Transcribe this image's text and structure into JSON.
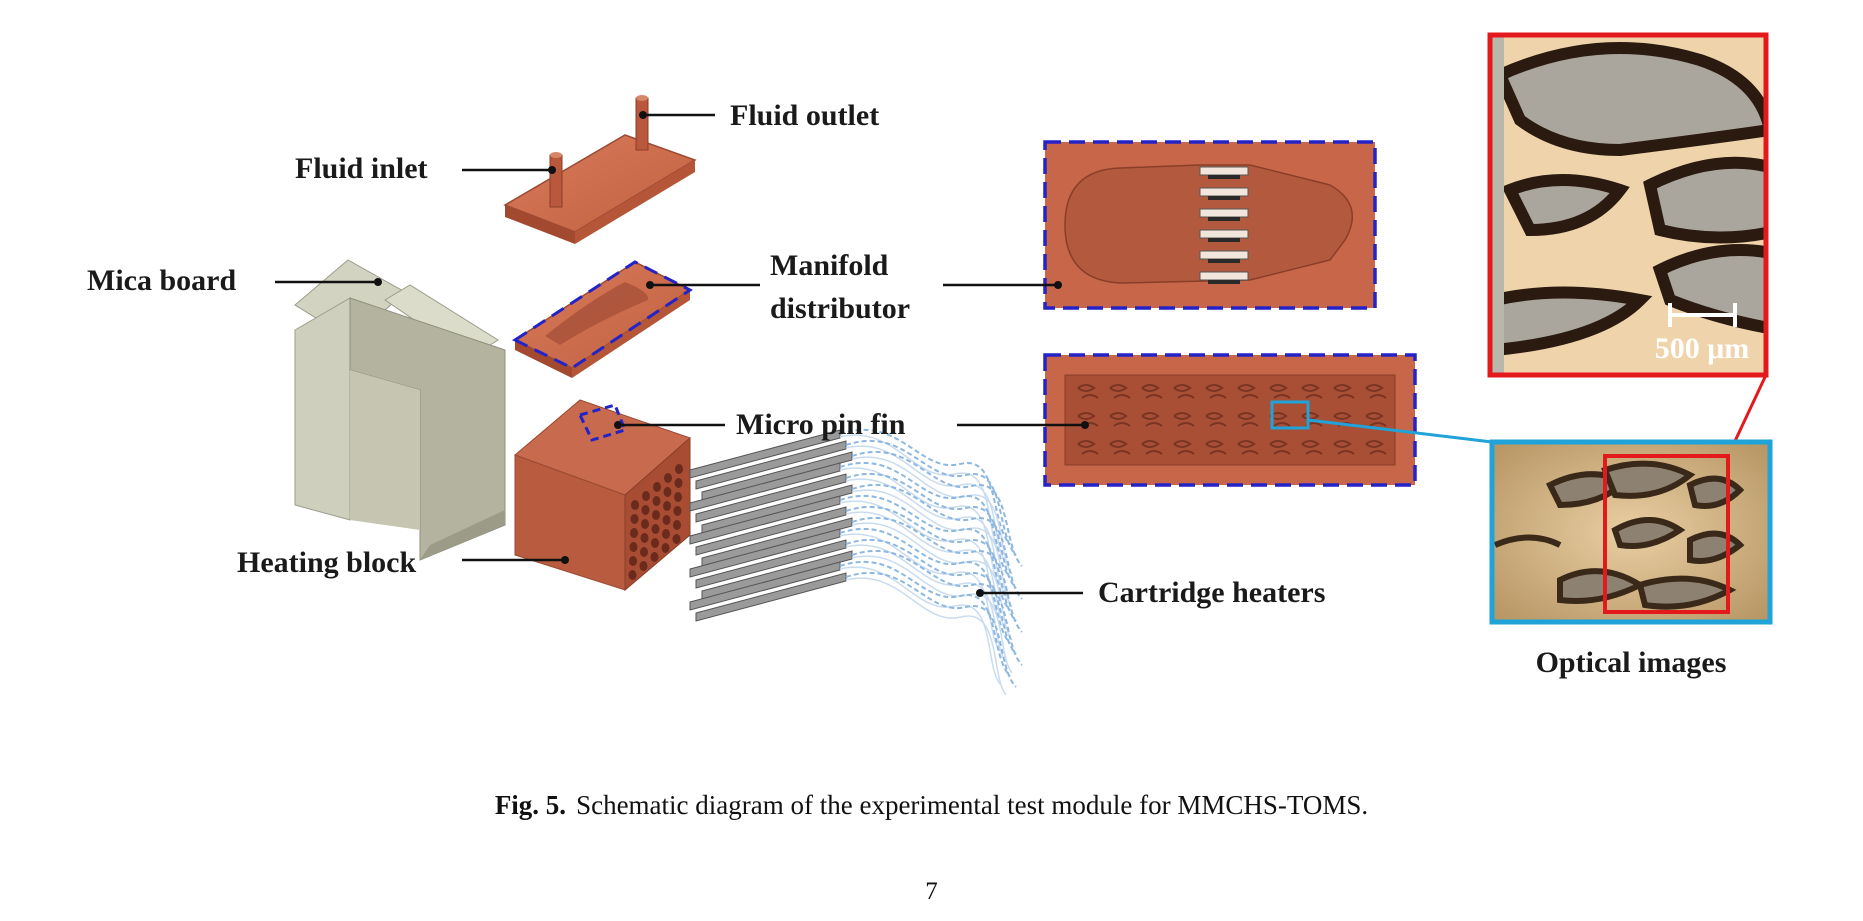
{
  "figure": {
    "labels": {
      "fluid_outlet": "Fluid outlet",
      "fluid_inlet": "Fluid inlet",
      "mica_board": "Mica board",
      "manifold_line1": "Manifold",
      "manifold_line2": "distributor",
      "micro_pin_fin": "Micro pin fin",
      "heating_block": "Heating block",
      "cartridge_heaters": "Cartridge heaters",
      "optical_images": "Optical images",
      "scale_bar": "500 μm"
    },
    "colors": {
      "copper": "#c8664a",
      "copper_dark": "#a8503a",
      "mica": "#d3d3c2",
      "highlight_blue": "#2323c8",
      "inset_cyan": "#1fa3d8",
      "inset_red": "#e4191c"
    }
  },
  "caption": {
    "label": "Fig. 5.",
    "text": "Schematic diagram of the experimental test module for MMCHS-TOMS."
  },
  "page_number": "7"
}
